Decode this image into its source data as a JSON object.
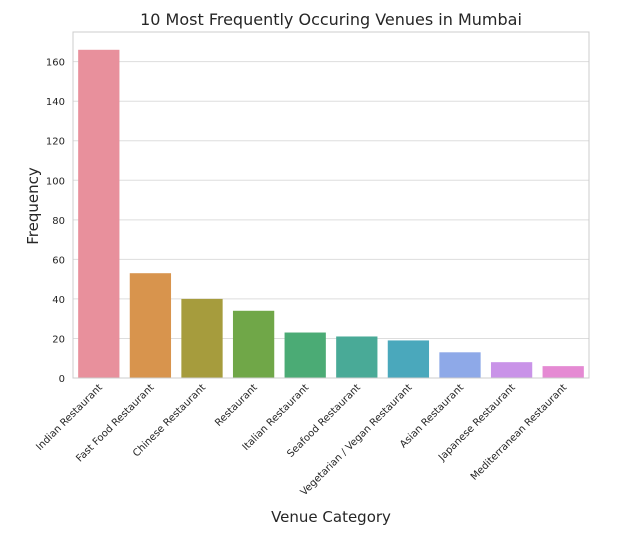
{
  "chart_data": {
    "type": "bar",
    "title": "10 Most Frequently Occuring Venues in Mumbai",
    "xlabel": "Venue Category",
    "ylabel": "Frequency",
    "categories": [
      "Indian Restaurant",
      "Fast Food Restaurant",
      "Chinese Restaurant",
      "Restaurant",
      "Italian Restaurant",
      "Seafood Restaurant",
      "Vegetarian / Vegan Restaurant",
      "Asian Restaurant",
      "Japanese Restaurant",
      "Mediterranean Restaurant"
    ],
    "values": [
      166,
      53,
      40,
      34,
      23,
      21,
      19,
      13,
      8,
      6
    ],
    "colors": [
      "#e8909c",
      "#d8944d",
      "#a69c3d",
      "#70a748",
      "#4bab75",
      "#49aa97",
      "#4aa8bc",
      "#8ea9e8",
      "#c993e8",
      "#e58ad3"
    ],
    "ylim": [
      0,
      175
    ],
    "yticks": [
      0,
      20,
      40,
      60,
      80,
      100,
      120,
      140,
      160
    ],
    "grid": true
  }
}
